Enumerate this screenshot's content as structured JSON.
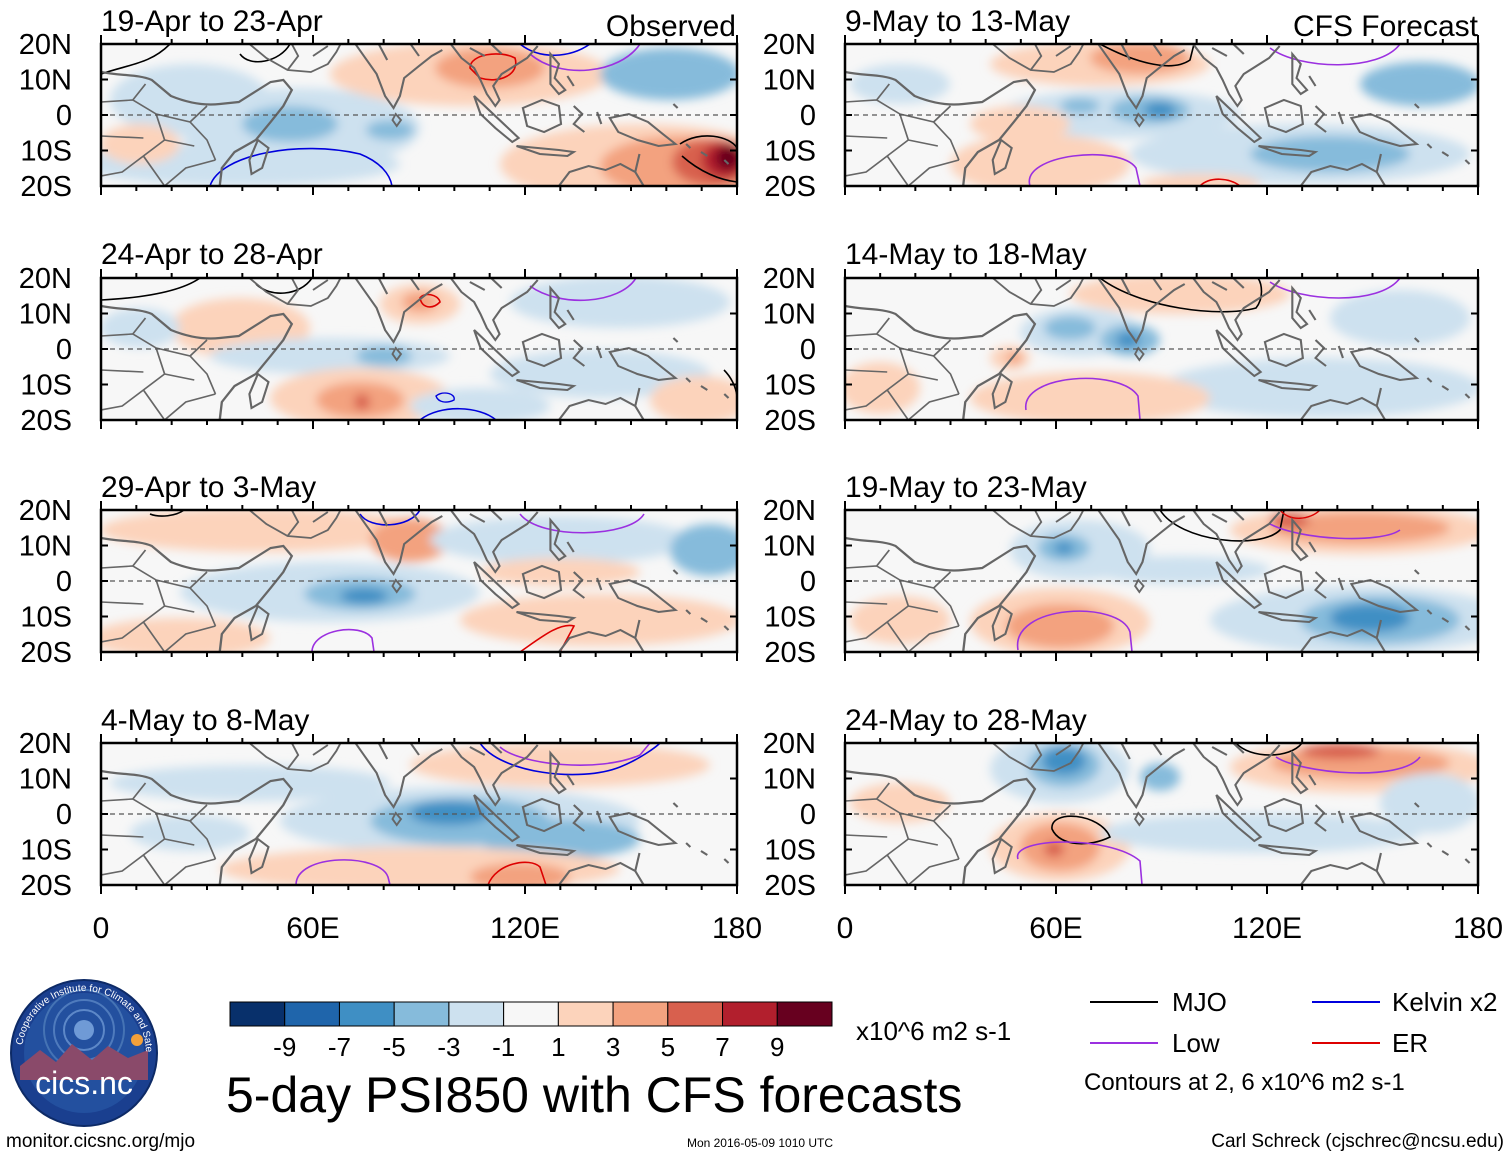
{
  "header": {
    "observed_label": "Observed",
    "forecast_label": "CFS Forecast"
  },
  "axes": {
    "lat_ticks": [
      "20N",
      "10N",
      "0",
      "10S",
      "20S"
    ],
    "lon_ticks": [
      "0",
      "60E",
      "120E",
      "180"
    ]
  },
  "panels": [
    {
      "title": "19-Apr to 23-Apr",
      "kind": "observed"
    },
    {
      "title": "24-Apr to 28-Apr",
      "kind": "observed"
    },
    {
      "title": "29-Apr to 3-May",
      "kind": "observed"
    },
    {
      "title": "4-May to 8-May",
      "kind": "observed"
    },
    {
      "title": "9-May to 13-May",
      "kind": "forecast"
    },
    {
      "title": "14-May to 18-May",
      "kind": "forecast"
    },
    {
      "title": "19-May to 23-May",
      "kind": "forecast"
    },
    {
      "title": "24-May to 28-May",
      "kind": "forecast"
    }
  ],
  "colorbar": {
    "labels": [
      "-9",
      "-7",
      "-5",
      "-3",
      "-1",
      "1",
      "3",
      "5",
      "7",
      "9"
    ],
    "colors": [
      "#08306b",
      "#1f65ab",
      "#3f8fc4",
      "#86bbdb",
      "#cde1ef",
      "#f7f7f7",
      "#fcd3bb",
      "#f3a27f",
      "#d8604e",
      "#b21f2d",
      "#67001f"
    ],
    "units": "x10^6 m2 s-1"
  },
  "legend": {
    "items": [
      {
        "label": "MJO",
        "color": "#000000"
      },
      {
        "label": "Kelvin x2",
        "color": "#0000dd"
      },
      {
        "label": "Low",
        "color": "#9b30e0"
      },
      {
        "label": "ER",
        "color": "#dd0000"
      }
    ],
    "note": "Contours at 2, 6 x10^6 m2 s-1"
  },
  "footer": {
    "main_title": "5-day PSI850 with CFS forecasts",
    "url": "monitor.cicsnc.org/mjo",
    "timestamp": "Mon 2016-05-09 1010 UTC",
    "author": "Carl Schreck (cjschrec@ncsu.edu)"
  },
  "logo": {
    "ring_text": "Cooperative Institute for Climate and Satellites",
    "name": "cics.nc"
  }
}
